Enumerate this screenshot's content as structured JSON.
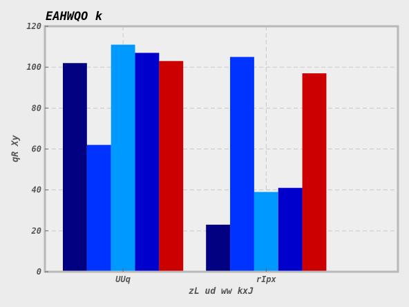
{
  "chart_data": {
    "type": "bar",
    "title": "EAHWQO k",
    "xlabel": "zL ud ww kxJ",
    "ylabel": "qR Xy",
    "categories": [
      "UUq",
      "rIpx"
    ],
    "series": [
      {
        "color": "#000080",
        "values": [
          102,
          23
        ]
      },
      {
        "color": "#0033ff",
        "values": [
          62,
          105
        ]
      },
      {
        "color": "#0099ff",
        "values": [
          111,
          39
        ]
      },
      {
        "color": "#0000cc",
        "values": [
          107,
          41
        ]
      },
      {
        "color": "#cc0000",
        "values": [
          103,
          97
        ]
      }
    ],
    "ylim": [
      0,
      120
    ],
    "yticks": [
      0,
      20,
      40,
      60,
      80,
      100,
      120
    ],
    "grid": true,
    "colors": {
      "background": "#ececec",
      "plot_background": "#eeeeee",
      "frame": "#b8b8b8",
      "grid": "#c8c8c8"
    }
  }
}
